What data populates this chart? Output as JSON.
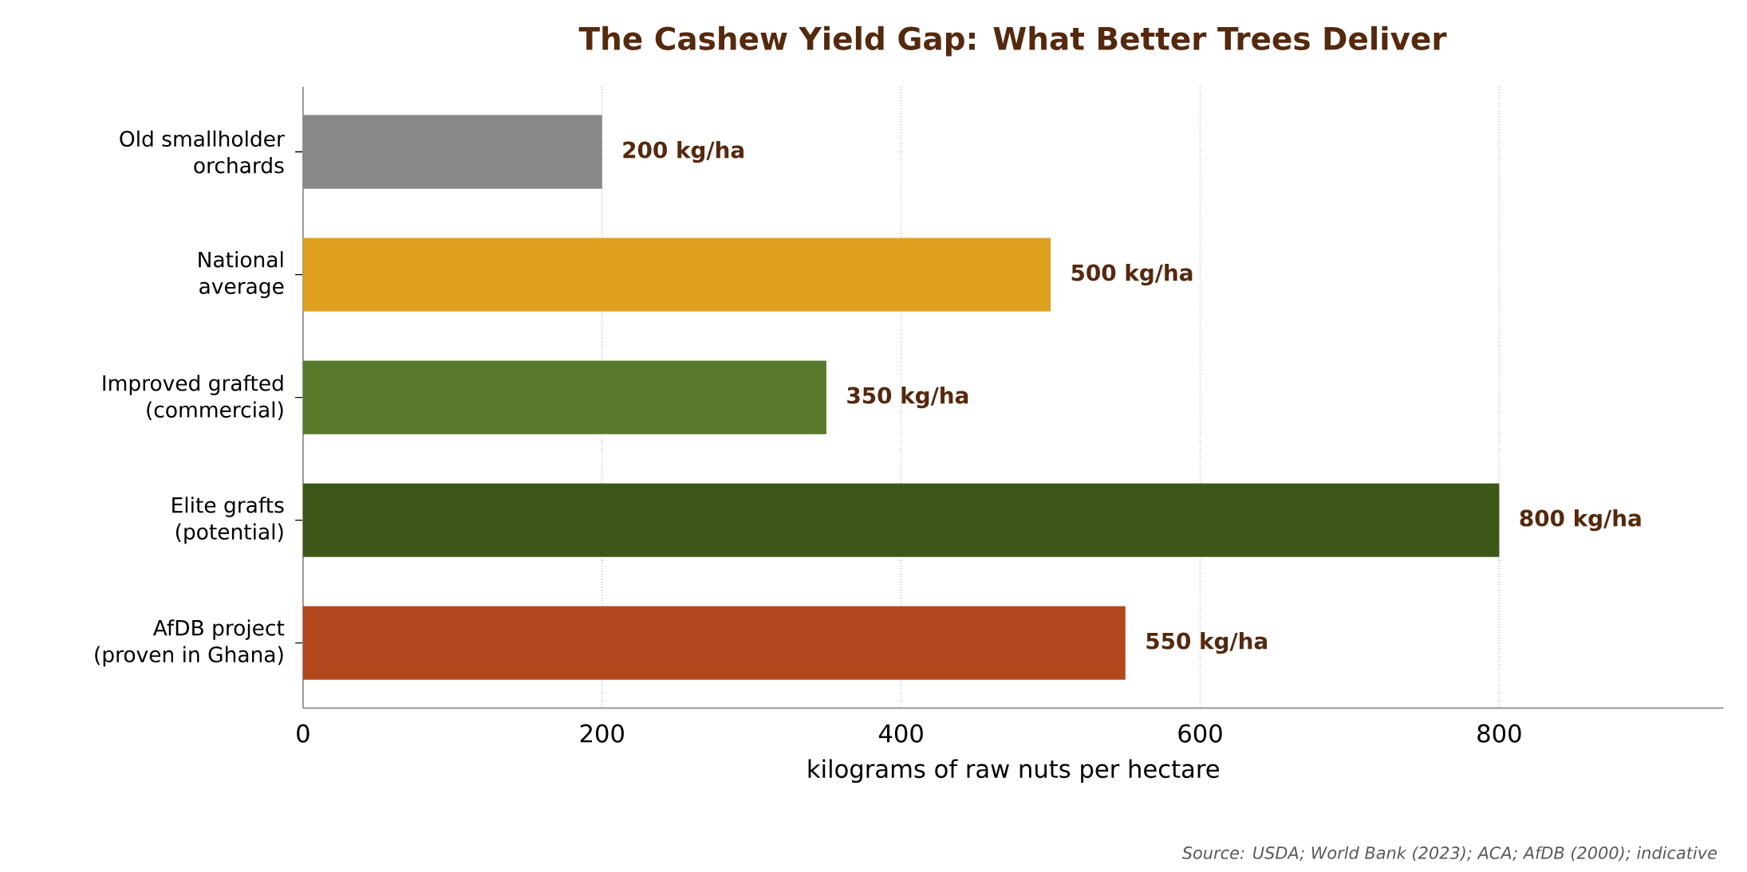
{
  "chart_data": {
    "type": "bar",
    "orientation": "horizontal",
    "title": "The Cashew Yield Gap: What Better Trees Deliver",
    "xlabel": "kilograms of raw nuts per hectare",
    "categories": [
      "Old smallholder\norchards",
      "National\naverage",
      "Improved grafted\n(commercial)",
      "Elite grafts\n(potential)",
      "AfDB project\n(proven in Ghana)"
    ],
    "values": [
      200,
      500,
      350,
      800,
      550
    ],
    "colors": [
      "#888888",
      "#dfa020",
      "#5a7a2b",
      "#3d5719",
      "#b3471d"
    ],
    "value_labels": [
      "200 kg/ha",
      "500 kg/ha",
      "350 kg/ha",
      "800 kg/ha",
      "550 kg/ha"
    ],
    "xlim": [
      0,
      950
    ],
    "xticks": [
      0,
      200,
      400,
      600,
      800
    ],
    "grid": "x",
    "annotations": [
      "Source: USDA; World Bank (2023); ACA; AfDB (2000); indicative"
    ]
  }
}
